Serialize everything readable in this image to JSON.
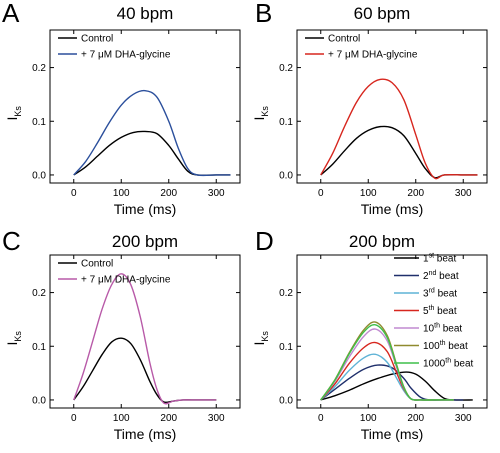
{
  "chart_data": [
    {
      "type": "line",
      "panel": "A",
      "title": "40 bpm",
      "xlabel": "Time (ms)",
      "ylabel": "I",
      "ylabel_sub": "Ks",
      "xlim": [
        -50,
        350
      ],
      "ylim": [
        -0.015,
        0.27
      ],
      "xticks": [
        0,
        100,
        200,
        300
      ],
      "xtick_labels": [
        "0",
        "100",
        "200",
        "300"
      ],
      "yticks": [
        0.0,
        0.1,
        0.2
      ],
      "ytick_labels": [
        "0.0",
        "0.1",
        "0.2"
      ],
      "legend_position": "top-left",
      "series": [
        {
          "name": "Control",
          "color": "#000000",
          "x": [
            0,
            25,
            50,
            75,
            100,
            125,
            150,
            175,
            200,
            220,
            240,
            260,
            300,
            330
          ],
          "y": [
            0,
            0.015,
            0.035,
            0.055,
            0.07,
            0.079,
            0.081,
            0.077,
            0.055,
            0.03,
            0.007,
            0,
            0,
            0
          ]
        },
        {
          "name": "+ 7 μM DHA-glycine",
          "color": "#2b4f9c",
          "x": [
            0,
            25,
            50,
            75,
            100,
            125,
            150,
            175,
            200,
            220,
            240,
            260,
            300,
            330
          ],
          "y": [
            0,
            0.025,
            0.06,
            0.098,
            0.13,
            0.15,
            0.157,
            0.145,
            0.1,
            0.05,
            0.012,
            0,
            0,
            0
          ]
        }
      ]
    },
    {
      "type": "line",
      "panel": "B",
      "title": "60 bpm",
      "xlabel": "Time (ms)",
      "ylabel": "I",
      "ylabel_sub": "Ks",
      "xlim": [
        -50,
        350
      ],
      "ylim": [
        -0.015,
        0.27
      ],
      "xticks": [
        0,
        100,
        200,
        300
      ],
      "xtick_labels": [
        "0",
        "100",
        "200",
        "300"
      ],
      "yticks": [
        0.0,
        0.1,
        0.2
      ],
      "ytick_labels": [
        "0.0",
        "0.1",
        "0.2"
      ],
      "legend_position": "top-left",
      "series": [
        {
          "name": "Control",
          "color": "#000000",
          "x": [
            0,
            25,
            50,
            75,
            100,
            125,
            150,
            175,
            200,
            220,
            240,
            260,
            300,
            330
          ],
          "y": [
            0,
            0.02,
            0.045,
            0.068,
            0.083,
            0.09,
            0.088,
            0.073,
            0.04,
            0.012,
            -0.005,
            0,
            0,
            0
          ]
        },
        {
          "name": "+ 7 μM DHA-glycine",
          "color": "#d7261e",
          "x": [
            0,
            25,
            50,
            75,
            100,
            125,
            150,
            175,
            200,
            220,
            240,
            260,
            300,
            330
          ],
          "y": [
            0,
            0.04,
            0.09,
            0.135,
            0.165,
            0.178,
            0.172,
            0.14,
            0.075,
            0.022,
            -0.006,
            0,
            0,
            0
          ]
        }
      ]
    },
    {
      "type": "line",
      "panel": "C",
      "title": "200 bpm",
      "xlabel": "Time (ms)",
      "ylabel": "I",
      "ylabel_sub": "Ks",
      "xlim": [
        -50,
        350
      ],
      "ylim": [
        -0.015,
        0.27
      ],
      "xticks": [
        0,
        100,
        200,
        300
      ],
      "xtick_labels": [
        "0",
        "100",
        "200",
        "300"
      ],
      "yticks": [
        0.0,
        0.1,
        0.2
      ],
      "ytick_labels": [
        "0.0",
        "0.1",
        "0.2"
      ],
      "legend_position": "top-left",
      "series": [
        {
          "name": "Control",
          "color": "#000000",
          "x": [
            0,
            20,
            40,
            60,
            80,
            100,
            120,
            140,
            160,
            175,
            190,
            210,
            230,
            260,
            300
          ],
          "y": [
            0,
            0.025,
            0.055,
            0.085,
            0.108,
            0.115,
            0.105,
            0.075,
            0.035,
            0.01,
            -0.004,
            -0.002,
            0,
            0,
            0
          ]
        },
        {
          "name": "+ 7 μM DHA-glycine",
          "color": "#b85aa8",
          "x": [
            0,
            20,
            40,
            60,
            80,
            100,
            120,
            140,
            160,
            175,
            190,
            210,
            230,
            260,
            300
          ],
          "y": [
            0,
            0.05,
            0.11,
            0.17,
            0.215,
            0.235,
            0.215,
            0.155,
            0.07,
            0.02,
            -0.006,
            -0.002,
            0,
            0,
            0
          ]
        }
      ]
    },
    {
      "type": "line",
      "panel": "D",
      "title": "200 bpm",
      "xlabel": "Time (ms)",
      "ylabel": "I",
      "ylabel_sub": "Ks",
      "xlim": [
        -50,
        350
      ],
      "ylim": [
        -0.015,
        0.27
      ],
      "xticks": [
        0,
        100,
        200,
        300
      ],
      "xtick_labels": [
        "0",
        "100",
        "200",
        "300"
      ],
      "yticks": [
        0.0,
        0.1,
        0.2
      ],
      "ytick_labels": [
        "0.0",
        "0.1",
        "0.2"
      ],
      "legend_position": "top-right",
      "series": [
        {
          "name": "1st beat",
          "name_num": "1",
          "name_sup": "st",
          "name_rest": " beat",
          "color": "#000000",
          "x": [
            0,
            30,
            60,
            90,
            120,
            150,
            180,
            200,
            220,
            240,
            260,
            280,
            320
          ],
          "y": [
            0,
            0.008,
            0.018,
            0.03,
            0.04,
            0.048,
            0.052,
            0.048,
            0.035,
            0.017,
            0.003,
            0,
            0
          ]
        },
        {
          "name": "2nd beat",
          "name_num": "2",
          "name_sup": "nd",
          "name_rest": " beat",
          "color": "#1f2f6b",
          "x": [
            0,
            30,
            60,
            90,
            120,
            150,
            175,
            190,
            210,
            230,
            260,
            300
          ],
          "y": [
            0,
            0.02,
            0.04,
            0.057,
            0.065,
            0.06,
            0.04,
            0.022,
            0.005,
            0,
            0,
            0
          ]
        },
        {
          "name": "3rd beat",
          "name_num": "3",
          "name_sup": "rd",
          "name_rest": " beat",
          "color": "#5fb3d6",
          "x": [
            0,
            30,
            60,
            90,
            115,
            140,
            160,
            175,
            190,
            210,
            240,
            280
          ],
          "y": [
            0,
            0.025,
            0.055,
            0.078,
            0.085,
            0.07,
            0.04,
            0.017,
            0.002,
            0,
            0,
            0
          ]
        },
        {
          "name": "5th beat",
          "name_num": "5",
          "name_sup": "th",
          "name_rest": " beat",
          "color": "#d7261e",
          "x": [
            0,
            30,
            60,
            90,
            115,
            140,
            160,
            175,
            190,
            210,
            240,
            280
          ],
          "y": [
            0,
            0.03,
            0.068,
            0.097,
            0.107,
            0.09,
            0.05,
            0.02,
            0.002,
            0,
            0,
            0
          ]
        },
        {
          "name": "10th beat",
          "name_num": "10",
          "name_sup": "th",
          "name_rest": " beat",
          "color": "#c08ad0",
          "x": [
            0,
            30,
            60,
            90,
            115,
            140,
            160,
            175,
            190,
            210,
            240,
            280
          ],
          "y": [
            0,
            0.035,
            0.08,
            0.118,
            0.132,
            0.11,
            0.06,
            0.022,
            0.002,
            0,
            0,
            0
          ]
        },
        {
          "name": "100th beat",
          "name_num": "100",
          "name_sup": "th",
          "name_rest": " beat",
          "color": "#8f8a2e",
          "x": [
            0,
            30,
            60,
            90,
            115,
            140,
            160,
            175,
            190,
            210,
            240,
            280
          ],
          "y": [
            0,
            0.038,
            0.088,
            0.13,
            0.145,
            0.12,
            0.065,
            0.024,
            0.002,
            0,
            0,
            0
          ]
        },
        {
          "name": "1000th beat",
          "name_num": "1000",
          "name_sup": "th",
          "name_rest": " beat",
          "color": "#3fbf4a",
          "x": [
            0,
            30,
            60,
            90,
            115,
            140,
            160,
            175,
            190,
            210,
            240,
            280
          ],
          "y": [
            0,
            0.037,
            0.086,
            0.126,
            0.14,
            0.116,
            0.063,
            0.023,
            0.002,
            0,
            0,
            0
          ]
        }
      ]
    }
  ]
}
